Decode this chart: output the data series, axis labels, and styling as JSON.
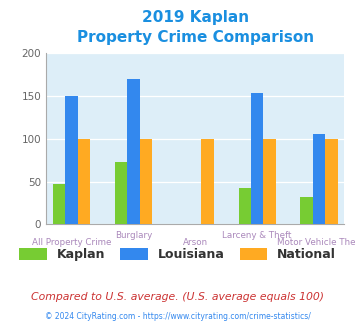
{
  "title_line1": "2019 Kaplan",
  "title_line2": "Property Crime Comparison",
  "title_color": "#1a8fe0",
  "categories": [
    "All Property Crime",
    "Burglary",
    "Arson",
    "Larceny & Theft",
    "Motor Vehicle Theft"
  ],
  "series": {
    "Kaplan": [
      47,
      73,
      0,
      43,
      32
    ],
    "Louisiana": [
      150,
      170,
      0,
      153,
      105
    ],
    "National": [
      100,
      100,
      100,
      100,
      100
    ]
  },
  "colors": {
    "Kaplan": "#77cc33",
    "Louisiana": "#3388ee",
    "National": "#ffaa22"
  },
  "ylim": [
    0,
    200
  ],
  "yticks": [
    0,
    50,
    100,
    150,
    200
  ],
  "plot_bg_color": "#ddeef8",
  "fig_bg_color": "#ffffff",
  "label_color": "#aa88bb",
  "legend_fontsize": 9,
  "footer_text": "© 2024 CityRating.com - https://www.cityrating.com/crime-statistics/",
  "footer_color": "#3388ee",
  "subtitle_text": "Compared to U.S. average. (U.S. average equals 100)",
  "subtitle_color": "#cc3333"
}
